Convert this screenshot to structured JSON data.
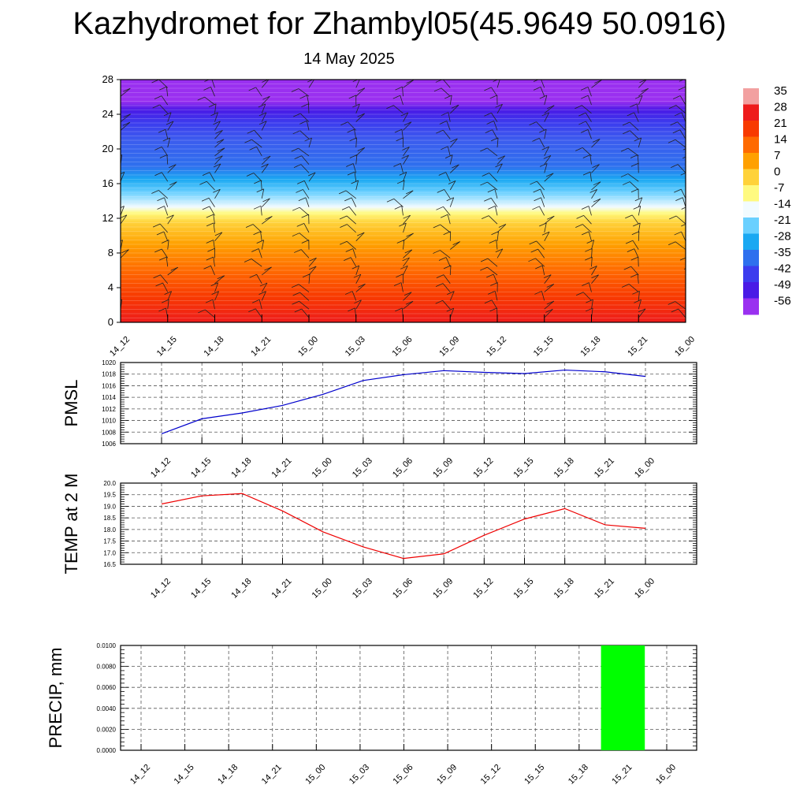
{
  "title": "Kazhydromet for Zhambyl05(45.9649 50.0916)",
  "subtitle": "14 May 2025",
  "chart_data": [
    {
      "type": "heatmap",
      "name": "upper-air section",
      "x_ticks": [
        "14_12",
        "14_15",
        "14_18",
        "14_21",
        "15_00",
        "15_03",
        "15_06",
        "15_09",
        "15_12",
        "15_15",
        "15_18",
        "15_21",
        "16_00"
      ],
      "y_ticks": [
        "0",
        "4",
        "8",
        "12",
        "16",
        "20",
        "24",
        "28"
      ],
      "ylim": [
        0,
        28
      ],
      "colorbar": {
        "labels": [
          "35",
          "28",
          "21",
          "14",
          "7",
          "0",
          "-7",
          "-14",
          "-21",
          "-28",
          "-35",
          "-42",
          "-49",
          "-56"
        ],
        "colors": [
          "#f2a0a0",
          "#ee1c1c",
          "#f83a00",
          "#ff6a00",
          "#ffa000",
          "#ffd23a",
          "#fffa80",
          "#f2fbff",
          "#6ad0ff",
          "#1aa8f2",
          "#2e70ee",
          "#3c3cee",
          "#4a1ae6",
          "#9a30f0"
        ]
      },
      "field_rows": [
        {
          "y": 0,
          "color": "#ee1c1c"
        },
        {
          "y": 3,
          "color": "#f83a00"
        },
        {
          "y": 6,
          "color": "#ff6a00"
        },
        {
          "y": 9,
          "color": "#ffa000"
        },
        {
          "y": 11.5,
          "color": "#ffd23a"
        },
        {
          "y": 12.6,
          "color": "#fffa80"
        },
        {
          "y": 13.3,
          "color": "#f2fbff"
        },
        {
          "y": 15,
          "color": "#6ad0ff"
        },
        {
          "y": 16.5,
          "color": "#1aa8f2"
        },
        {
          "y": 18,
          "color": "#2e70ee"
        },
        {
          "y": 21,
          "color": "#3c5cee"
        },
        {
          "y": 23,
          "color": "#3c3cee"
        },
        {
          "y": 24.5,
          "color": "#4a1ae6"
        },
        {
          "y": 25.5,
          "color": "#9a30f0"
        },
        {
          "y": 28,
          "color": "#9a30f0"
        }
      ]
    },
    {
      "type": "line",
      "ylabel": "PMSL",
      "x": [
        "14_12",
        "14_15",
        "14_18",
        "14_21",
        "15_00",
        "15_03",
        "15_06",
        "15_09",
        "15_12",
        "15_15",
        "15_18",
        "15_21",
        "16_00"
      ],
      "series": [
        {
          "values": [
            1007.7,
            1010.3,
            1011.3,
            1012.6,
            1014.5,
            1016.9,
            1017.9,
            1018.6,
            1018.3,
            1018.1,
            1018.7,
            1018.4,
            1017.6
          ]
        }
      ],
      "ylim": [
        1006,
        1020
      ],
      "y_ticks": [
        "1006",
        "1008",
        "1010",
        "1012",
        "1014",
        "1016",
        "1018",
        "1020"
      ],
      "color": "#0000cc",
      "grid": true
    },
    {
      "type": "line",
      "ylabel": "TEMP at 2 M",
      "x": [
        "14_12",
        "14_15",
        "14_18",
        "14_21",
        "15_00",
        "15_03",
        "15_06",
        "15_09",
        "15_12",
        "15_15",
        "15_18",
        "15_21",
        "16_00"
      ],
      "series": [
        {
          "values": [
            19.1,
            19.45,
            19.55,
            18.8,
            17.9,
            17.25,
            16.75,
            16.95,
            17.75,
            18.45,
            18.9,
            18.2,
            18.05
          ]
        }
      ],
      "ylim": [
        16.5,
        20.0
      ],
      "y_ticks": [
        "16.5",
        "17.0",
        "17.5",
        "18.0",
        "18.5",
        "19.0",
        "19.5",
        "20.0"
      ],
      "color": "#ee0000",
      "grid": true
    },
    {
      "type": "bar",
      "ylabel": "PRECIP, mm",
      "x": [
        "14_12",
        "14_15",
        "14_18",
        "14_21",
        "15_00",
        "15_03",
        "15_06",
        "15_09",
        "15_12",
        "15_15",
        "15_18",
        "15_21",
        "16_00"
      ],
      "values": [
        0,
        0,
        0,
        0,
        0,
        0,
        0,
        0,
        0,
        0,
        0,
        0.01,
        0
      ],
      "ylim": [
        0,
        0.01
      ],
      "y_ticks": [
        "0.0000",
        "0.0020",
        "0.0040",
        "0.0060",
        "0.0080",
        "0.0100"
      ],
      "color": "#00ff00",
      "grid": true
    }
  ]
}
